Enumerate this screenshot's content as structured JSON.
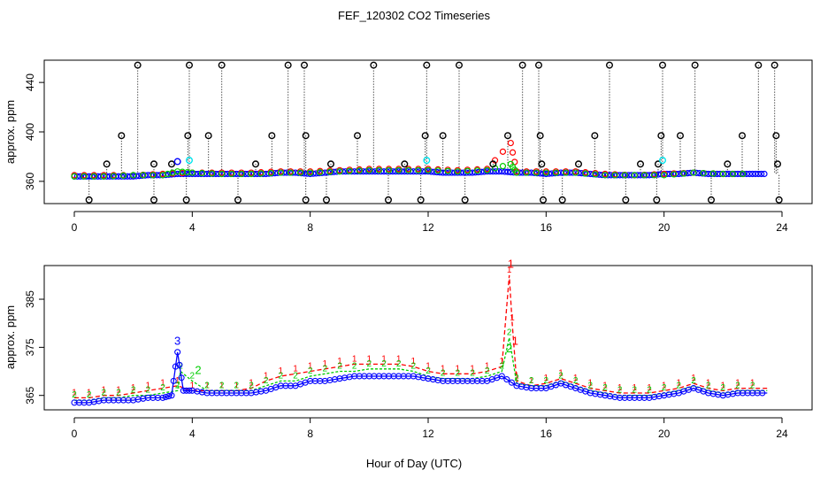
{
  "figure": {
    "title": "FEF_120302  CO2 Timeseries",
    "xlabel": "Hour of Day (UTC)"
  },
  "colors": {
    "black": "#000000",
    "red": "#ff0000",
    "blue": "#0000ff",
    "green": "#00cd00",
    "cyan": "#00e5ee"
  },
  "chart_data": [
    {
      "type": "scatter",
      "name": "top-panel",
      "ylabel": "approx. ppm",
      "xlim": [
        0,
        24
      ],
      "ylim": [
        342,
        458
      ],
      "xticks": [
        0,
        4,
        8,
        12,
        16,
        20,
        24
      ],
      "xtick_labels": [
        "0",
        "4",
        "8",
        "12",
        "16",
        "20",
        "24"
      ],
      "yticks": [
        360,
        400,
        440
      ],
      "ytick_labels": [
        "360",
        "400",
        "440"
      ],
      "grid": false,
      "series": [
        {
          "name": "baseline-blue",
          "color": "blue",
          "marker": "circle",
          "x": [
            0.0,
            0.5,
            1.0,
            1.5,
            2.0,
            2.5,
            3.0,
            3.5,
            4.0,
            4.5,
            5.0,
            5.5,
            6.0,
            6.5,
            7.0,
            7.5,
            8.0,
            8.5,
            9.0,
            9.5,
            10.0,
            10.5,
            11.0,
            11.5,
            12.0,
            12.5,
            13.0,
            13.5,
            14.0,
            14.5,
            15.0,
            15.5,
            16.0,
            16.5,
            17.0,
            17.5,
            18.0,
            18.5,
            19.0,
            19.5,
            20.0,
            20.5,
            21.0,
            21.5,
            22.0,
            22.5,
            23.0,
            23.5
          ],
          "y": [
            364,
            364,
            364,
            364,
            364,
            365,
            365,
            366,
            366,
            366,
            366,
            366,
            366,
            366,
            367,
            367,
            366,
            367,
            368,
            368,
            368,
            368,
            368,
            368,
            368,
            367,
            367,
            367,
            368,
            368,
            367,
            367,
            366,
            367,
            367,
            366,
            365,
            365,
            365,
            365,
            366,
            366,
            367,
            366,
            366,
            366,
            366,
            366
          ]
        },
        {
          "name": "baseline-red",
          "color": "red",
          "marker": "circle",
          "x": [
            0.0,
            1.0,
            2.0,
            3.0,
            4.0,
            5.0,
            6.0,
            7.0,
            8.0,
            9.0,
            10.0,
            11.0,
            12.0,
            13.0,
            14.0,
            14.8,
            15.0,
            16.0,
            17.0,
            18.0,
            19.0,
            20.0,
            21.0,
            22.0,
            23.0
          ],
          "y": [
            365,
            365,
            365,
            366,
            367,
            367,
            367,
            368,
            368,
            369,
            370,
            370,
            370,
            369,
            370,
            391,
            368,
            368,
            368,
            366,
            365,
            366,
            367,
            366,
            366
          ]
        },
        {
          "name": "baseline-green",
          "color": "green",
          "marker": "circle",
          "x": [
            0.0,
            1.0,
            2.0,
            3.0,
            3.5,
            4.0,
            5.0,
            6.0,
            7.0,
            8.0,
            9.0,
            10.0,
            11.0,
            12.0,
            13.0,
            14.0,
            14.8,
            15.0,
            16.0,
            17.0,
            18.0,
            19.0,
            20.0,
            21.0,
            22.0,
            23.0
          ],
          "y": [
            364,
            364,
            365,
            365,
            368,
            367,
            366,
            366,
            367,
            367,
            368,
            369,
            369,
            369,
            368,
            369,
            374,
            367,
            367,
            367,
            365,
            365,
            365,
            367,
            366,
            366
          ]
        },
        {
          "name": "outliers-high-black",
          "color": "black",
          "marker": "circle",
          "x": [
            1.1,
            1.6,
            2.15,
            2.7,
            3.3,
            3.85,
            3.9,
            4.55,
            5.0,
            6.15,
            6.7,
            7.25,
            7.8,
            7.85,
            8.7,
            9.6,
            10.15,
            11.2,
            11.9,
            11.95,
            12.5,
            13.05,
            14.2,
            14.7,
            15.2,
            15.75,
            15.8,
            15.85,
            17.1,
            17.65,
            18.15,
            19.2,
            19.8,
            19.9,
            19.95,
            20.55,
            21.05,
            22.15,
            22.65,
            23.2,
            23.75,
            23.8,
            23.85
          ],
          "y": [
            374,
            397,
            454,
            374,
            374,
            397,
            454,
            397,
            454,
            374,
            397,
            454,
            454,
            397,
            374,
            397,
            454,
            374,
            397,
            454,
            397,
            454,
            374,
            397,
            454,
            454,
            397,
            374,
            374,
            397,
            454,
            374,
            374,
            397,
            454,
            397,
            454,
            374,
            397,
            454,
            454,
            397,
            374
          ]
        },
        {
          "name": "outliers-low-black",
          "color": "black",
          "marker": "circle",
          "x": [
            0.5,
            2.7,
            3.8,
            5.55,
            7.85,
            8.55,
            10.65,
            11.75,
            13.25,
            15.9,
            16.55,
            18.7,
            19.75,
            21.6,
            23.9
          ],
          "y": [
            345,
            345,
            345,
            345,
            345,
            345,
            345,
            345,
            345,
            345,
            345,
            345,
            345,
            345,
            345
          ]
        },
        {
          "name": "cyan-points",
          "color": "cyan",
          "marker": "circle",
          "x": [
            3.9,
            11.95,
            19.95
          ],
          "y": [
            377,
            377,
            377
          ]
        },
        {
          "name": "blue-spike",
          "color": "blue",
          "marker": "circle",
          "x": [
            3.5
          ],
          "y": [
            376
          ]
        }
      ]
    },
    {
      "type": "line",
      "name": "bottom-panel",
      "ylabel": "approx. ppm",
      "xlim": [
        0,
        24
      ],
      "ylim": [
        362,
        392
      ],
      "xticks": [
        0,
        4,
        8,
        12,
        16,
        20,
        24
      ],
      "xtick_labels": [
        "0",
        "4",
        "8",
        "12",
        "16",
        "20",
        "24"
      ],
      "yticks": [
        365,
        375,
        385
      ],
      "ytick_labels": [
        "365",
        "375",
        "385"
      ],
      "grid": false,
      "series": [
        {
          "name": "1",
          "color": "red",
          "label": "1",
          "x": [
            0.0,
            0.5,
            1.0,
            1.5,
            2.0,
            2.5,
            3.0,
            3.5,
            4.0,
            4.5,
            5.0,
            5.5,
            6.0,
            6.5,
            7.0,
            7.5,
            8.0,
            8.5,
            9.0,
            9.5,
            10.0,
            10.5,
            11.0,
            11.5,
            12.0,
            12.5,
            13.0,
            13.5,
            14.0,
            14.5,
            14.75,
            14.85,
            15.0,
            15.5,
            16.0,
            16.5,
            17.0,
            17.5,
            18.0,
            18.5,
            19.0,
            19.5,
            20.0,
            20.5,
            21.0,
            21.5,
            22.0,
            22.5,
            23.0,
            23.5
          ],
          "y": [
            364.5,
            364.5,
            365,
            365,
            365.5,
            366,
            366.5,
            367,
            366,
            366,
            366,
            366,
            366.5,
            368,
            369,
            369.5,
            370,
            370.5,
            371,
            371.5,
            371.5,
            371.5,
            371.5,
            371,
            370,
            369.5,
            369.5,
            369.5,
            370,
            371,
            390,
            380,
            368,
            367,
            367.5,
            368.5,
            367.5,
            366.5,
            366,
            365.5,
            365.5,
            365.5,
            366,
            366.5,
            367.5,
            366.5,
            366,
            366.5,
            366.5,
            366.5
          ]
        },
        {
          "name": "2",
          "color": "green",
          "label": "2",
          "x": [
            0.0,
            0.5,
            1.0,
            1.5,
            2.0,
            2.5,
            3.0,
            3.5,
            3.6,
            4.0,
            4.5,
            5.0,
            5.5,
            6.0,
            6.5,
            7.0,
            7.5,
            8.0,
            8.5,
            9.0,
            9.5,
            10.0,
            10.5,
            11.0,
            11.5,
            12.0,
            12.5,
            13.0,
            13.5,
            14.0,
            14.5,
            14.75,
            15.0,
            15.5,
            16.0,
            16.5,
            17.0,
            17.5,
            18.0,
            18.5,
            19.0,
            19.5,
            20.0,
            20.5,
            21.0,
            21.5,
            22.0,
            22.5,
            23.0,
            23.5
          ],
          "y": [
            364,
            364,
            364.5,
            364.5,
            365,
            365,
            365.5,
            366,
            370,
            368,
            366,
            366,
            366,
            366,
            367,
            368,
            368,
            369,
            369.5,
            370,
            370,
            370.5,
            370.5,
            370.5,
            370,
            369,
            368.5,
            368.5,
            368.5,
            369,
            370,
            377,
            367.5,
            367,
            367,
            368,
            367,
            366,
            365.5,
            365,
            365,
            365,
            365.5,
            366,
            367,
            366,
            365.5,
            366,
            366,
            366
          ]
        },
        {
          "name": "3",
          "color": "blue",
          "label": "3",
          "x": [
            0.0,
            0.5,
            1.0,
            1.5,
            2.0,
            2.5,
            3.0,
            3.3,
            3.5,
            3.7,
            4.0,
            4.5,
            5.0,
            5.5,
            6.0,
            6.5,
            7.0,
            7.5,
            8.0,
            8.5,
            9.0,
            9.5,
            10.0,
            10.5,
            11.0,
            11.5,
            12.0,
            12.5,
            13.0,
            13.5,
            14.0,
            14.5,
            15.0,
            15.5,
            16.0,
            16.5,
            17.0,
            17.5,
            18.0,
            18.5,
            19.0,
            19.5,
            20.0,
            20.5,
            21.0,
            21.5,
            22.0,
            22.5,
            23.0,
            23.5
          ],
          "y": [
            363.5,
            363.5,
            364,
            364,
            364,
            364.5,
            364.5,
            365,
            374,
            366,
            366,
            365.5,
            365.5,
            365.5,
            365.5,
            366,
            367,
            367,
            368,
            368,
            368.5,
            369,
            369,
            369,
            369,
            369,
            368.5,
            368,
            368,
            368,
            368,
            369,
            367,
            366.5,
            366.5,
            367.5,
            366.5,
            365.5,
            365,
            364.5,
            364.5,
            364.5,
            365,
            365.5,
            366.5,
            365.5,
            365,
            365.5,
            365.5,
            365.5
          ]
        }
      ],
      "annotations": [
        {
          "text": "1",
          "x": 14.8,
          "y": 391.5,
          "color": "red"
        },
        {
          "text": "1",
          "x": 14.95,
          "y": 375.5,
          "color": "red"
        },
        {
          "text": "2",
          "x": 14.75,
          "y": 374,
          "color": "green"
        },
        {
          "text": "3",
          "x": 3.5,
          "y": 375.5,
          "color": "blue"
        },
        {
          "text": "2",
          "x": 4.2,
          "y": 369.5,
          "color": "green"
        }
      ]
    }
  ]
}
